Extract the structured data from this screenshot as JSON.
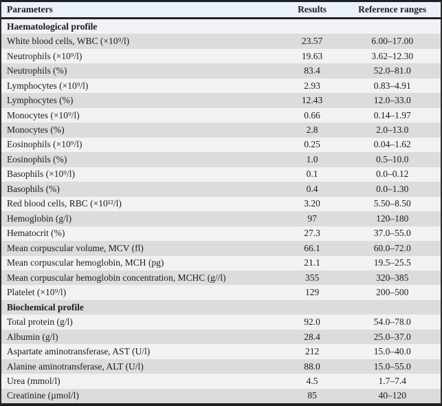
{
  "colors": {
    "header_bg": "#eaf1f8",
    "row_light": "#f2f2f4",
    "row_dark": "#dcdcde",
    "border": "#1e2022",
    "text": "#1b1b1d"
  },
  "table": {
    "columns": [
      "Parameters",
      "Results",
      "Reference ranges"
    ],
    "rows": [
      {
        "type": "section",
        "param": "Haematological profile"
      },
      {
        "type": "data",
        "param": "White blood cells, WBC (×10⁹/l)",
        "result": "23.57",
        "range": "6.00–17.00"
      },
      {
        "type": "data",
        "param": "Neutrophils (×10⁹/l)",
        "result": "19.63",
        "range": "3.62–12.30"
      },
      {
        "type": "data",
        "param": "Neutrophils (%)",
        "result": "83.4",
        "range": "52.0–81.0"
      },
      {
        "type": "data",
        "param": "Lymphocytes (×10⁹/l)",
        "result": "2.93",
        "range": "0.83–4.91"
      },
      {
        "type": "data",
        "param": "Lymphocytes (%)",
        "result": "12.43",
        "range": "12.0–33.0"
      },
      {
        "type": "data",
        "param": "Monocytes (×10⁹/l)",
        "result": "0.66",
        "range": "0.14–1.97"
      },
      {
        "type": "data",
        "param": "Monocytes (%)",
        "result": "2.8",
        "range": "2.0–13.0"
      },
      {
        "type": "data",
        "param": "Eosinophils (×10⁹/l)",
        "result": "0.25",
        "range": "0.04–1.62"
      },
      {
        "type": "data",
        "param": "Eosinophils (%)",
        "result": "1.0",
        "range": "0.5–10.0"
      },
      {
        "type": "data",
        "param": "Basophils (×10⁹/l)",
        "result": "0.1",
        "range": "0.0–0.12"
      },
      {
        "type": "data",
        "param": "Basophils (%)",
        "result": "0.4",
        "range": "0.0–1.30"
      },
      {
        "type": "data",
        "param": "Red blood cells, RBC (×10¹²/l)",
        "result": "3.20",
        "range": "5.50–8.50"
      },
      {
        "type": "data",
        "param": "Hemoglobin (g/l)",
        "result": "97",
        "range": "120–180"
      },
      {
        "type": "data",
        "param": "Hematocrit (%)",
        "result": "27.3",
        "range": "37.0–55.0"
      },
      {
        "type": "data",
        "param": "Mean corpuscular volume, MCV (fl)",
        "result": "66.1",
        "range": "60.0–72.0"
      },
      {
        "type": "data",
        "param": "Mean corpuscular hemoglobin, MCH (pg)",
        "result": "21.1",
        "range": "19.5–25.5"
      },
      {
        "type": "data",
        "param": "Mean corpuscular hemoglobin concentration, MCHC (g//l)",
        "result": "355",
        "range": "320–385"
      },
      {
        "type": "data",
        "param": "Platelet (×10⁹/l)",
        "result": "129",
        "range": "200–500"
      },
      {
        "type": "section",
        "param": "Biochemical profile"
      },
      {
        "type": "data",
        "param": "Total protein (g/l)",
        "result": "92.0",
        "range": "54.0–78.0"
      },
      {
        "type": "data",
        "param": "Albumin (g/l)",
        "result": "28.4",
        "range": "25.0–37.0"
      },
      {
        "type": "data",
        "param": "Aspartate aminotransferase, AST (U/l)",
        "result": "212",
        "range": "15.0–40.0"
      },
      {
        "type": "data",
        "param": "Alanine aminotransferase, ALT (U/l)",
        "result": "88.0",
        "range": "15.0–55.0"
      },
      {
        "type": "data",
        "param": "Urea (mmol/l)",
        "result": "4.5",
        "range": "1.7–7.4"
      },
      {
        "type": "data",
        "param": "Creatinine (µmol/l)",
        "result": "85",
        "range": "40–120"
      }
    ]
  }
}
